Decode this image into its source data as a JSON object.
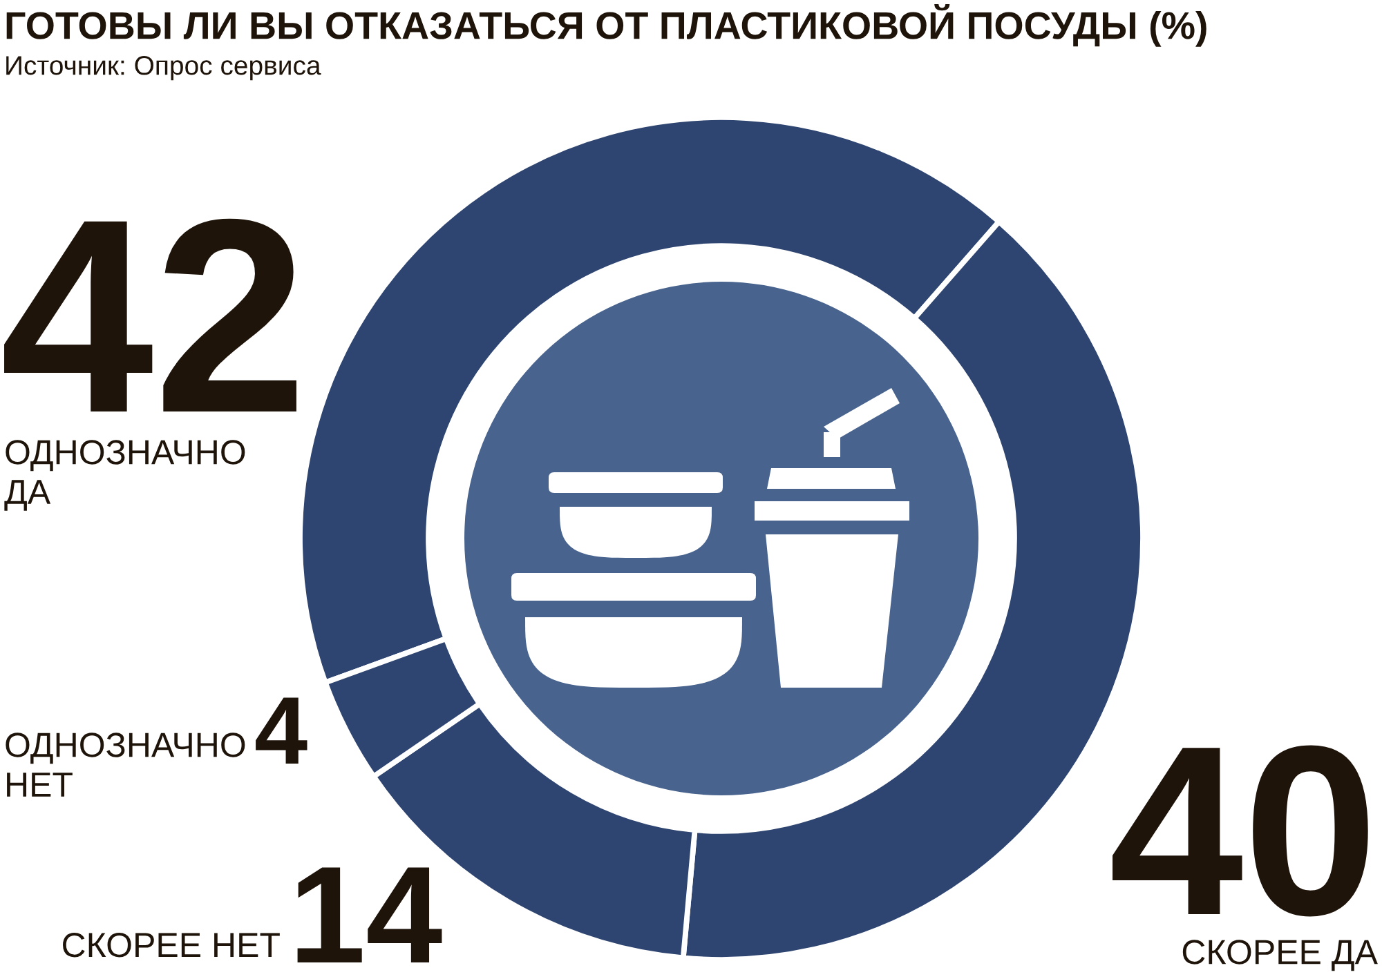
{
  "chart_data": {
    "type": "donut",
    "title": "ГОТОВЫ ЛИ ВЫ ОТКАЗАТЬСЯ ОТ ПЛАСТИКОВОЙ ПОСУДЫ (%)",
    "annotations": [
      "Источник: Опрос сервиса"
    ],
    "categories": [
      "ОДНОЗНАЧНО ДА",
      "СКОРЕЕ ДА",
      "СКОРЕЕ НЕТ",
      "ОДНОЗНАЧНО НЕТ"
    ],
    "values": [
      42,
      40,
      14,
      4
    ],
    "colors": [
      "#2f4571",
      "#2f4571",
      "#2f4571",
      "#2f4571"
    ],
    "data_labels": true
  }
}
